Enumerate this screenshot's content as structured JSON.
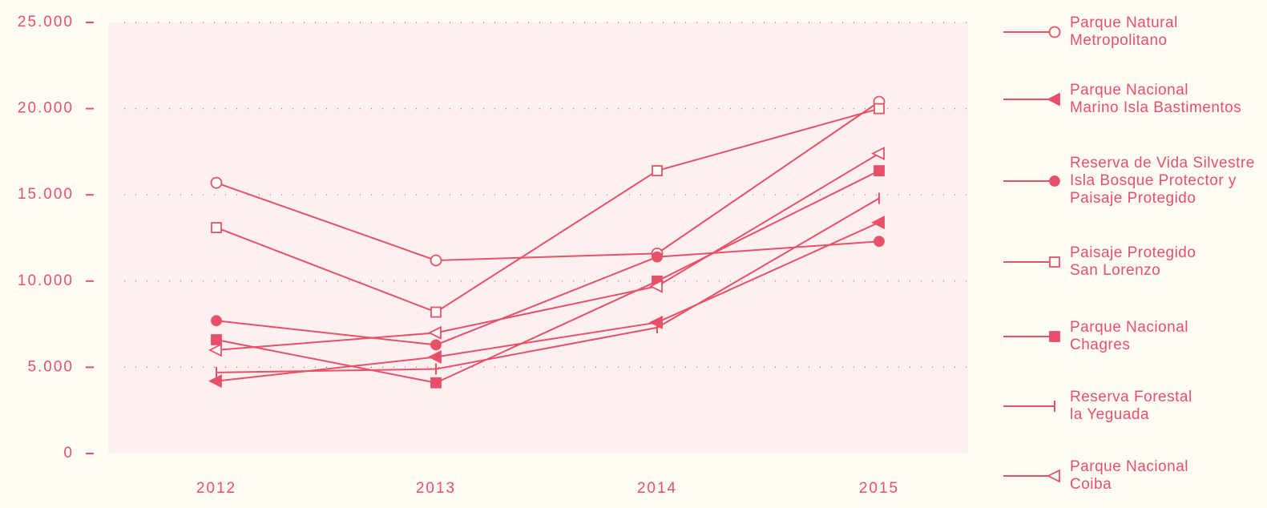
{
  "chart_data": {
    "type": "line",
    "categories": [
      "2012",
      "2013",
      "2014",
      "2015"
    ],
    "ylim": [
      0,
      25000
    ],
    "yticks": [
      0,
      {
        "value": 5000,
        "label": "5.000"
      },
      {
        "value": 10000,
        "label": "10.000"
      },
      {
        "value": 15000,
        "label": "15.000"
      },
      {
        "value": 20000,
        "label": "20.000"
      },
      {
        "value": 25000,
        "label": "25.000"
      }
    ],
    "grid": true,
    "legend": "right",
    "series": [
      {
        "name": "Parque Natural\nMetropolitano",
        "color": "#e8506a",
        "marker": "circle-open",
        "values": [
          15700,
          11200,
          11600,
          20400
        ]
      },
      {
        "name": "Parque Nacional\nMarino Isla Bastimentos",
        "color": "#e8506a",
        "marker": "triangle-left",
        "values": [
          4200,
          5600,
          7600,
          13400
        ]
      },
      {
        "name": "Reserva de Vida Silvestre\nIsla Bosque Protector y\nPaisaje Protegido",
        "color": "#e8506a",
        "marker": "circle",
        "values": [
          7700,
          6300,
          11400,
          12300
        ]
      },
      {
        "name": "Paisaje Protegido\nSan Lorenzo",
        "color": "#e8506a",
        "marker": "square-open",
        "values": [
          13100,
          8200,
          16400,
          20000
        ]
      },
      {
        "name": "Parque Nacional\nChagres",
        "color": "#e8506a",
        "marker": "square",
        "values": [
          6600,
          4100,
          10000,
          16400
        ]
      },
      {
        "name": "Reserva Forestal\nla Yeguada",
        "color": "#e8506a",
        "marker": "vline",
        "values": [
          4700,
          4900,
          7300,
          14800
        ]
      },
      {
        "name": "Parque Nacional\nCoiba",
        "color": "#e8506a",
        "marker": "triangle-left-open",
        "values": [
          6000,
          7000,
          9700,
          17400
        ]
      }
    ]
  }
}
